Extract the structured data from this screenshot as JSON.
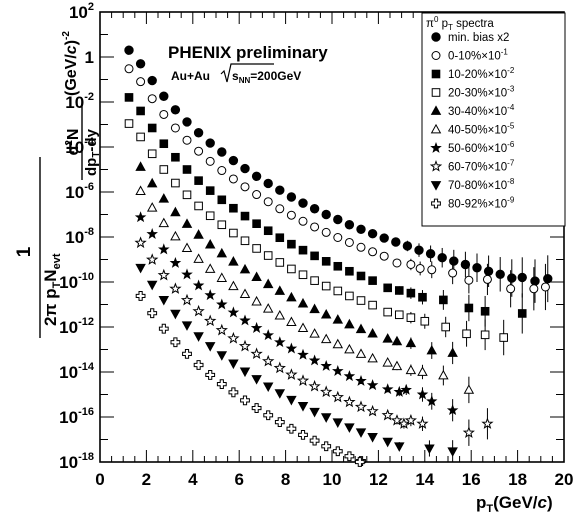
{
  "chart_data": {
    "type": "scatter",
    "title": "PHENIX preliminary",
    "subtitle": {
      "system": "Au+Au",
      "energy_prefix": "s",
      "energy_sub": "NN",
      "energy_suffix": "=200GeV"
    },
    "xlabel": {
      "main": "p",
      "sub": "T",
      "unit_open": "(GeV/",
      "unit_c": "c",
      "unit_close": ")"
    },
    "ylabel": {
      "numerator": "1",
      "denominator_prefix": "2π p",
      "denominator_sub1": "T",
      "denominator_mid": "N",
      "denominator_sub2": "evt",
      "deriv_numerator_d": "d",
      "deriv_numerator_sup": "2",
      "deriv_numerator_N": "N",
      "deriv_denominator_main": "dp",
      "deriv_denominator_sub": "T",
      "deriv_denominator_end": "dy",
      "unit_open": "(GeV/",
      "unit_c": "c",
      "unit_close": ")",
      "unit_sup": "-2"
    },
    "x_ticks": [
      "0",
      "2",
      "4",
      "6",
      "8",
      "10",
      "12",
      "14",
      "16",
      "18",
      "20"
    ],
    "y_ticks": [
      {
        "base": "10",
        "exp": "2"
      },
      {
        "base": "1",
        "exp": ""
      },
      {
        "base": "10",
        "exp": "-2"
      },
      {
        "base": "10",
        "exp": "-4"
      },
      {
        "base": "10",
        "exp": "-6"
      },
      {
        "base": "10",
        "exp": "-8"
      },
      {
        "base": "10",
        "exp": "-10"
      },
      {
        "base": "10",
        "exp": "-12"
      },
      {
        "base": "10",
        "exp": "-14"
      },
      {
        "base": "10",
        "exp": "-16"
      },
      {
        "base": "10",
        "exp": "-18"
      }
    ],
    "xlim": [
      0,
      20
    ],
    "ylim": [
      1e-18,
      100
    ],
    "y_scale": "log",
    "grid": false,
    "legend_placement": "top-right",
    "legend_title": {
      "pi": "π",
      "pi_sup": "0",
      "p": " p",
      "p_sub": "T",
      "rest": " spectra"
    },
    "x": [
      1.25,
      1.75,
      2.25,
      2.75,
      3.25,
      3.75,
      4.25,
      4.75,
      5.25,
      5.75,
      6.25,
      6.75,
      7.25,
      7.75,
      8.25,
      8.75,
      9.25,
      9.75,
      10.25,
      10.75,
      11.25,
      11.75,
      12.25,
      12.75,
      13.25,
      13.75,
      14.25,
      14.75,
      15.25,
      15.75,
      16.25,
      16.75,
      17.25,
      17.75,
      18.25,
      18.75,
      19.25
    ],
    "series": [
      {
        "name": "min. bias x2",
        "marker": "circle-filled",
        "values": [
          2.0,
          0.5,
          0.09,
          0.018,
          0.0045,
          0.0013,
          0.00043,
          0.00015,
          6e-05,
          2.5e-05,
          1.1e-05,
          5e-06,
          2.4e-06,
          1.2e-06,
          6e-07,
          3.2e-07,
          1.8e-07,
          1e-07,
          6e-08,
          3.5e-08,
          2.2e-08,
          1.4e-08,
          9e-09,
          6e-09,
          4e-09,
          2.6e-09,
          1.8e-09,
          1.2e-09,
          8.5e-10,
          6e-10,
          4.3e-10,
          3e-10,
          2.2e-10,
          1.5e-10,
          null,
          1.1e-10,
          null
        ],
        "values_sparse": [
          [
            18.2,
            1.6e-10
          ],
          [
            19.3,
            1.4e-10
          ]
        ]
      },
      {
        "name": "0-10%×10",
        "exp": "-1",
        "marker": "circle-open",
        "values": [
          0.3,
          0.08,
          0.014,
          0.0028,
          0.0007,
          0.0002,
          6.5e-05,
          2.3e-05,
          9e-06,
          3.8e-06,
          1.7e-06,
          7.7e-07,
          3.7e-07,
          1.8e-07,
          9.3e-08,
          5e-08,
          2.8e-08,
          1.6e-08,
          9.5e-09,
          5.7e-09,
          3.5e-09,
          2.2e-09,
          1.4e-09,
          null,
          null,
          null,
          null,
          null,
          null,
          null,
          null,
          null,
          null,
          null,
          null,
          null,
          null
        ],
        "values_sparse": [
          [
            12.8,
            7e-10
          ],
          [
            13.4,
            6e-10
          ],
          [
            13.8,
            4e-10
          ],
          [
            14.3,
            3.5e-10
          ],
          [
            15.2,
            2.5e-10
          ],
          [
            15.9,
            1.2e-10
          ],
          [
            16.7,
            1.3e-10
          ],
          [
            17.7,
            5e-11
          ],
          [
            18.7,
            5e-11
          ],
          [
            19.2,
            6e-11
          ]
        ]
      },
      {
        "name": "10-20%×10",
        "exp": "-2",
        "marker": "square-filled",
        "values": [
          0.016,
          0.004,
          0.0007,
          0.00014,
          3.5e-05,
          1e-05,
          3.2e-06,
          1.15e-06,
          4.5e-07,
          1.9e-07,
          8.5e-08,
          3.9e-08,
          1.9e-08,
          9.3e-09,
          4.8e-09,
          2.6e-09,
          1.45e-09,
          8.3e-10,
          5e-10,
          3e-10,
          1.85e-10,
          1.15e-10,
          null,
          null,
          null,
          null,
          null,
          null,
          null,
          null,
          null,
          null,
          null,
          null,
          null,
          null,
          null
        ],
        "values_sparse": [
          [
            12.4,
            5.5e-11
          ],
          [
            12.9,
            4.2e-11
          ],
          [
            13.4,
            3.2e-11
          ],
          [
            13.9,
            2.1e-11
          ],
          [
            14.8,
            1.6e-11
          ],
          [
            15.9,
            7e-12
          ],
          [
            16.6,
            5e-12
          ],
          [
            18.2,
            4e-12
          ]
        ]
      },
      {
        "name": "20-30%×10",
        "exp": "-3",
        "marker": "square-open",
        "values": [
          0.0011,
          0.00028,
          5e-05,
          1e-05,
          2.5e-06,
          7.5e-07,
          2.4e-07,
          8.8e-08,
          3.5e-08,
          1.5e-08,
          6.8e-09,
          3.1e-09,
          1.5e-09,
          7.4e-10,
          3.8e-10,
          2.1e-10,
          1.15e-10,
          6.6e-11,
          4e-11,
          2.4e-11,
          1.5e-11,
          9.4e-12,
          null,
          null,
          null,
          null,
          null,
          null,
          null,
          null,
          null,
          null,
          null,
          null,
          null,
          null,
          null
        ],
        "values_sparse": [
          [
            12.4,
            4.6e-12
          ],
          [
            12.9,
            3.5e-12
          ],
          [
            13.4,
            2.6e-12
          ],
          [
            14.0,
            1.8e-12
          ],
          [
            14.9,
            1e-12
          ],
          [
            15.8,
            5e-13
          ],
          [
            16.6,
            4.5e-13
          ],
          [
            17.4,
            3.4e-13
          ]
        ]
      },
      {
        "name": "30-40%×10",
        "exp": "-4",
        "marker": "triangle-up-filled",
        "values": [
          null,
          1.3e-05,
          2.4e-06,
          5e-07,
          1.25e-07,
          3.8e-08,
          1.25e-08,
          4.6e-09,
          1.85e-09,
          8e-10,
          3.6e-10,
          1.65e-10,
          8e-11,
          4e-11,
          2.05e-11,
          1.1e-11,
          6.2e-12,
          3.55e-12,
          2.1e-12,
          1.3e-12,
          8e-13,
          5.1e-13,
          null,
          null,
          null,
          null,
          null,
          null,
          null,
          null,
          null,
          null,
          null,
          null,
          null,
          null,
          null
        ],
        "values_sparse": [
          [
            12.4,
            3e-13
          ],
          [
            12.8,
            2.3e-13
          ],
          [
            13.4,
            1.9e-13
          ],
          [
            14.3,
            9e-14
          ],
          [
            15.2,
            7e-14
          ]
        ]
      },
      {
        "name": "40-50%×10",
        "exp": "-5",
        "marker": "triangle-up-open",
        "values": [
          null,
          1.1e-06,
          2e-07,
          4.1e-08,
          1.05e-08,
          3.2e-09,
          1.05e-09,
          3.8e-10,
          1.5e-10,
          6.5e-11,
          2.9e-11,
          1.35e-11,
          6.5e-12,
          3.2e-12,
          1.65e-12,
          8.9e-13,
          5e-13,
          2.85e-13,
          1.7e-13,
          1e-13,
          6.3e-14,
          4e-14,
          null,
          null,
          null,
          null,
          null,
          null,
          null,
          null,
          null,
          null,
          null,
          null,
          null,
          null,
          null
        ],
        "values_sparse": [
          [
            12.4,
            2.6e-14
          ],
          [
            12.8,
            1.8e-14
          ],
          [
            13.4,
            1.2e-14
          ],
          [
            13.9,
            1e-14
          ],
          [
            14.8,
            7e-15
          ],
          [
            15.9,
            1.6e-15
          ]
        ]
      },
      {
        "name": "50-60%×10",
        "exp": "-6",
        "marker": "star-filled",
        "values": [
          null,
          7.5e-08,
          1.35e-08,
          2.8e-09,
          7e-10,
          2.15e-10,
          7e-11,
          2.6e-11,
          1e-11,
          4.4e-12,
          1.95e-12,
          9e-13,
          4.3e-13,
          2.1e-13,
          1.1e-13,
          5.8e-14,
          3.25e-14,
          1.85e-14,
          1.1e-14,
          6.5e-15,
          4e-15,
          2.6e-15,
          null,
          null,
          null,
          null,
          null,
          null,
          null,
          null,
          null,
          null,
          null,
          null,
          null,
          null,
          null
        ],
        "values_sparse": [
          [
            12.4,
            1.7e-15
          ],
          [
            12.9,
            1.3e-15
          ],
          [
            13.2,
            1.6e-15
          ],
          [
            13.9,
            1e-15
          ],
          [
            14.3,
            5e-16
          ],
          [
            15.2,
            2e-16
          ]
        ]
      },
      {
        "name": "60-70%×10",
        "exp": "-7",
        "marker": "star-open",
        "values": [
          null,
          5.5e-09,
          9.8e-10,
          2e-10,
          5e-11,
          1.55e-11,
          5e-12,
          1.85e-12,
          7.2e-13,
          3.1e-13,
          1.4e-13,
          6.4e-14,
          3e-14,
          1.5e-14,
          7.6e-15,
          4.1e-15,
          2.3e-15,
          1.3e-15,
          7.6e-16,
          4.6e-16,
          2.8e-16,
          1.8e-16,
          null,
          null,
          null,
          null,
          null,
          null,
          null,
          null,
          null,
          null,
          null,
          null,
          null,
          null,
          null
        ],
        "values_sparse": [
          [
            12.4,
            1.2e-16
          ],
          [
            12.8,
            7e-17
          ],
          [
            13.1,
            5e-17
          ],
          [
            13.4,
            7e-17
          ],
          [
            13.9,
            5e-17
          ],
          [
            15.9,
            2e-17
          ],
          [
            16.7,
            5e-17
          ]
        ]
      },
      {
        "name": "70-80%×10",
        "exp": "-8",
        "marker": "triangle-down-filled",
        "values": [
          null,
          4.3e-10,
          7.6e-11,
          1.6e-11,
          3.9e-12,
          1.2e-12,
          3.9e-13,
          1.43e-13,
          5.6e-14,
          2.4e-14,
          1.06e-14,
          4.9e-15,
          2.3e-15,
          1.15e-15,
          5.8e-16,
          3.1e-16,
          1.7e-16,
          9.8e-17,
          5.8e-17,
          3.5e-17,
          2.1e-17,
          1.3e-17,
          null,
          null,
          null,
          null,
          null,
          null,
          null,
          null,
          null,
          null,
          null,
          null,
          null,
          null,
          null
        ],
        "values_sparse": [
          [
            12.4,
            8e-18
          ],
          [
            12.9,
            5e-18
          ],
          [
            14.2,
            4e-18
          ],
          [
            15.2,
            3e-18
          ]
        ]
      },
      {
        "name": "80-92%×10",
        "exp": "-9",
        "marker": "cross-open",
        "values": [
          null,
          2.4e-11,
          4.1e-12,
          8.4e-13,
          2.1e-13,
          6.4e-14,
          2.05e-14,
          7.4e-15,
          2.9e-15,
          1.25e-15,
          5.5e-16,
          2.5e-16,
          1.2e-16,
          5.9e-17,
          3e-17,
          1.6e-17,
          8.9e-18,
          5e-18,
          3e-18,
          1.8e-18,
          1.1e-18,
          null,
          null,
          null,
          null,
          null,
          null,
          null,
          null,
          null,
          null,
          null,
          null,
          null,
          null,
          null,
          null
        ],
        "values_sparse": [
          [
            11.2,
            1e-18
          ],
          [
            11.4,
            9e-19
          ]
        ]
      }
    ]
  }
}
